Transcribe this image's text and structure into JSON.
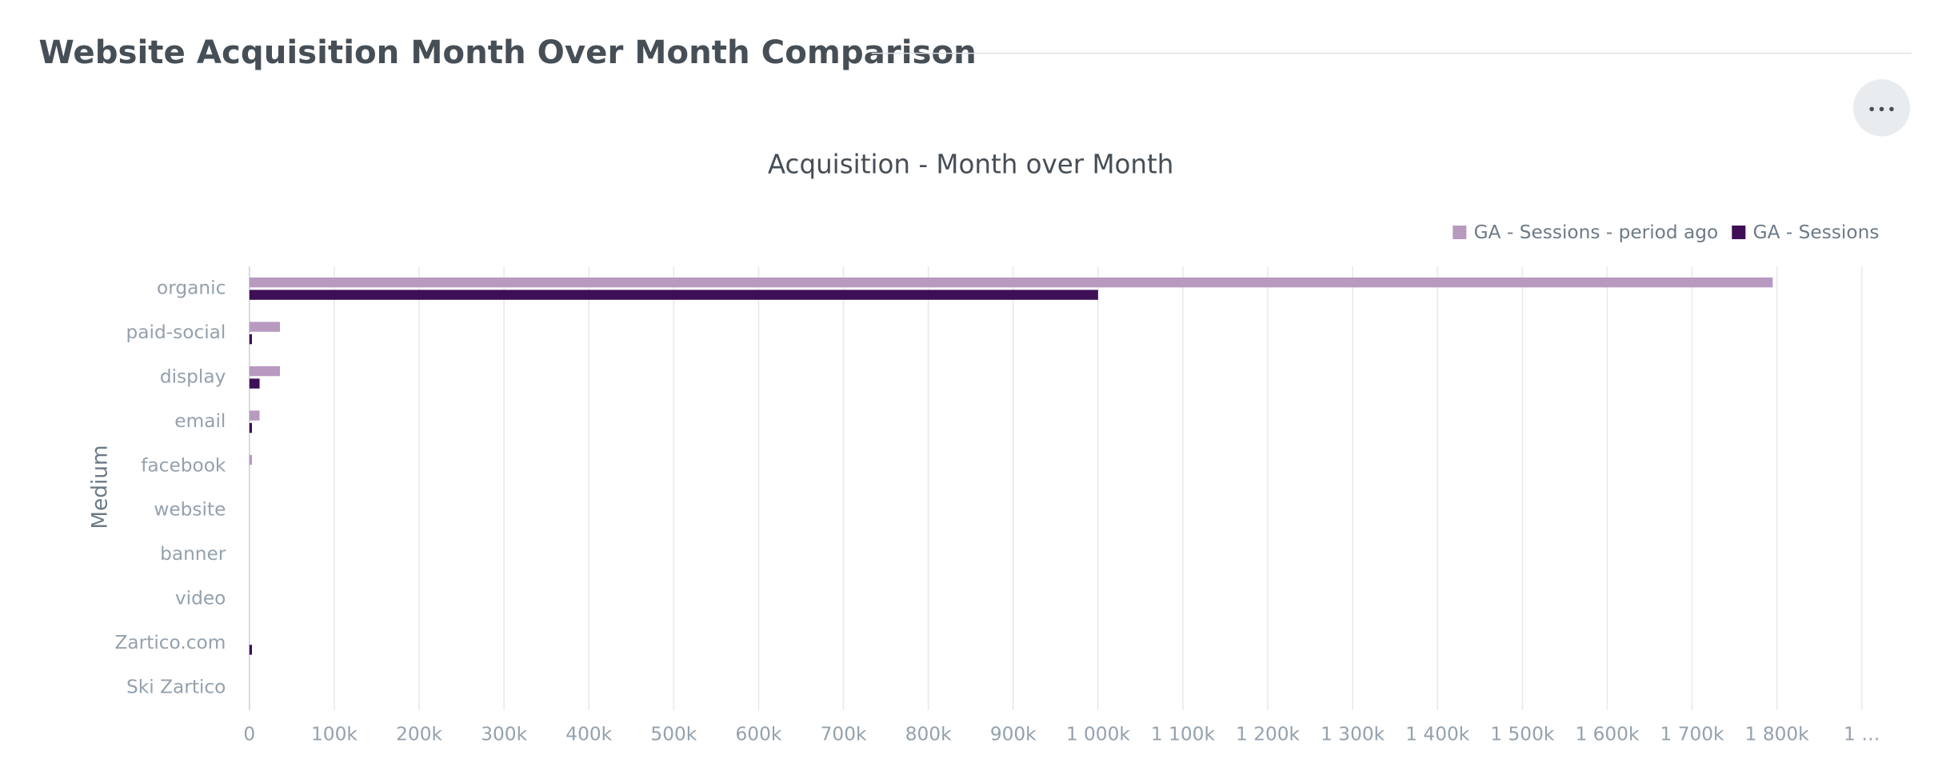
{
  "header": {
    "title": "Website Acquisition Month Over Month Comparison"
  },
  "chart_data": {
    "type": "hbar",
    "title": "Acquisition - Month over Month",
    "y_label": "Medium",
    "categories": [
      "organic",
      "paid-social",
      "display",
      "email",
      "facebook",
      "website",
      "banner",
      "video",
      "Zartico.com",
      "Ski Zartico"
    ],
    "series": [
      {
        "name": "GA - Sessions - period ago",
        "color": "#b89ac0",
        "values": [
          1795000,
          36000,
          36000,
          12000,
          3000,
          0,
          0,
          0,
          0,
          0
        ]
      },
      {
        "name": "GA - Sessions",
        "color": "#3e0f57",
        "values": [
          1000000,
          3000,
          12000,
          3000,
          0,
          0,
          0,
          0,
          3000,
          0
        ]
      }
    ],
    "xlim": [
      0,
      1900000
    ],
    "xticks": [
      0,
      {
        "value": 100000,
        "label": "100k"
      },
      {
        "value": 200000,
        "label": "200k"
      },
      {
        "value": 300000,
        "label": "300k"
      },
      {
        "value": 400000,
        "label": "400k"
      },
      {
        "value": 500000,
        "label": "500k"
      },
      {
        "value": 600000,
        "label": "600k"
      },
      {
        "value": 700000,
        "label": "700k"
      },
      {
        "value": 800000,
        "label": "800k"
      },
      {
        "value": 900000,
        "label": "900k"
      },
      {
        "value": 1000000,
        "label": "1 000k"
      },
      {
        "value": 1100000,
        "label": "1 100k"
      },
      {
        "value": 1200000,
        "label": "1 200k"
      },
      {
        "value": 1300000,
        "label": "1 300k"
      },
      {
        "value": 1400000,
        "label": "1 400k"
      },
      {
        "value": 1500000,
        "label": "1 500k"
      },
      {
        "value": 1600000,
        "label": "1 600k"
      },
      {
        "value": 1700000,
        "label": "1 700k"
      },
      {
        "value": 1800000,
        "label": "1 800k"
      },
      {
        "value": 1900000,
        "label": "1 …"
      }
    ],
    "grid": true,
    "legend": "top-right"
  }
}
